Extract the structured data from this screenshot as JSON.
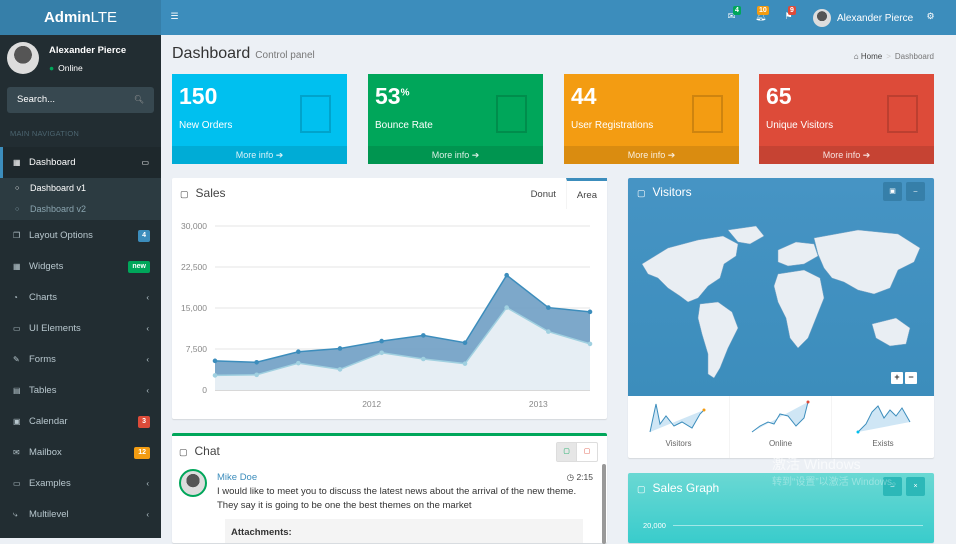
{
  "brand": {
    "bold": "Admin",
    "light": "LTE"
  },
  "topbar": {
    "toggle_icon": "bars-icon",
    "notifications": [
      {
        "icon": "envelope-icon",
        "count": "4",
        "color": "#00a65a"
      },
      {
        "icon": "bell-icon",
        "count": "10",
        "color": "#f39c12"
      },
      {
        "icon": "flag-icon",
        "count": "9",
        "color": "#dd4b39"
      }
    ],
    "user_name": "Alexander Pierce",
    "settings_icon": "gears-icon"
  },
  "sidebar": {
    "user_name": "Alexander Pierce",
    "status": "Online",
    "search_placeholder": "Search...",
    "header": "MAIN NAVIGATION",
    "items": [
      {
        "label": "Dashboard",
        "icon": "dashboard-icon",
        "active": true
      },
      {
        "label": "Layout Options",
        "icon": "files-icon",
        "badge": "4",
        "badge_color": "#3c8dbc"
      },
      {
        "label": "Widgets",
        "icon": "th-icon",
        "badge": "new",
        "badge_color": "#00a65a"
      },
      {
        "label": "Charts",
        "icon": "pie-chart-icon"
      },
      {
        "label": "UI Elements",
        "icon": "laptop-icon"
      },
      {
        "label": "Forms",
        "icon": "edit-icon"
      },
      {
        "label": "Tables",
        "icon": "table-icon"
      },
      {
        "label": "Calendar",
        "icon": "calendar-icon",
        "badge": "3",
        "badge_color": "#dd4b39"
      },
      {
        "label": "Mailbox",
        "icon": "envelope-icon",
        "badge": "12",
        "badge_color": "#f39c12"
      },
      {
        "label": "Examples",
        "icon": "folder-icon"
      },
      {
        "label": "Multilevel",
        "icon": "share-icon"
      }
    ],
    "sub_items": [
      {
        "label": "Dashboard v1",
        "active": true
      },
      {
        "label": "Dashboard v2"
      }
    ]
  },
  "content": {
    "title": "Dashboard",
    "subtitle": "Control panel",
    "breadcrumb": [
      "Home",
      "Dashboard"
    ]
  },
  "stat_boxes": [
    {
      "value": "150",
      "suffix": "",
      "label": "New Orders",
      "more": "More info",
      "color": "#00c0ef"
    },
    {
      "value": "53",
      "suffix": "%",
      "label": "Bounce Rate",
      "more": "More info",
      "color": "#00a65a"
    },
    {
      "value": "44",
      "suffix": "",
      "label": "User Registrations",
      "more": "More info",
      "color": "#f39c12"
    },
    {
      "value": "65",
      "suffix": "",
      "label": "Unique Visitors",
      "more": "More info",
      "color": "#dd4b39"
    }
  ],
  "sales": {
    "title": "Sales",
    "tabs": [
      "Donut",
      "Area"
    ],
    "active_tab": "Area"
  },
  "chart_data": {
    "type": "area",
    "title": "Sales",
    "yticks": [
      "30,000",
      "22,500",
      "15,000",
      "7,500",
      "0"
    ],
    "ylim": [
      0,
      30000
    ],
    "xticks": [
      "2012",
      "2013"
    ],
    "x": [
      "2011 Q1",
      "2011 Q2",
      "2011 Q3",
      "2011 Q4",
      "2012 Q1",
      "2012 Q2",
      "2012 Q3",
      "2012 Q4",
      "2013 Q1",
      "2013 Q2"
    ],
    "series": [
      {
        "values": [
          2666,
          2778,
          4912,
          3767,
          6810,
          5670,
          4820,
          15073,
          10687,
          8432
        ],
        "color": "#a0d0e0"
      },
      {
        "values": [
          5332,
          5070,
          7000,
          7600,
          8950,
          9990,
          8650,
          21000,
          15080,
          14300
        ],
        "color": "#3c8dbc"
      }
    ],
    "grid": true
  },
  "visitors": {
    "title": "Visitors",
    "sparks": [
      "Visitors",
      "Online",
      "Exists"
    ]
  },
  "chat": {
    "title": "Chat",
    "author": "Mike Doe",
    "time": "2:15",
    "message": "I would like to meet you to discuss the latest news about the arrival of the new theme. They say it is going to be one the best themes on the market",
    "attachments_label": "Attachments:"
  },
  "sales_graph": {
    "title": "Sales Graph",
    "ytick": "20,000"
  },
  "watermark": {
    "line1": "激活 Windows",
    "line2": "转到“设置”以激活 Windows。"
  }
}
